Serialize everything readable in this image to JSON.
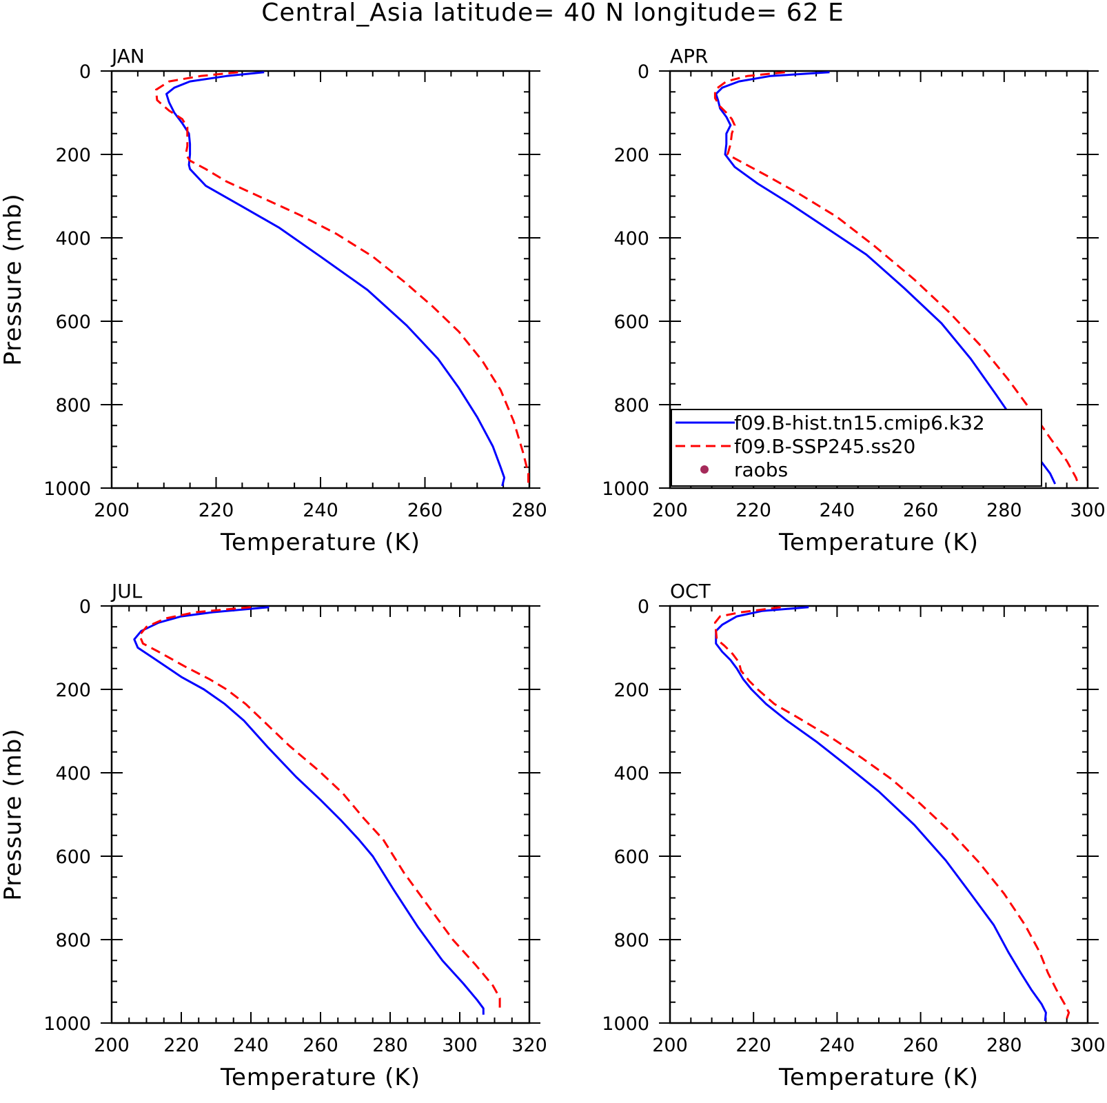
{
  "figure": {
    "title": "Central_Asia  latitude= 40 N longitude= 62 E"
  },
  "chart_data": [
    {
      "type": "line",
      "panel_label": "JAN",
      "xlabel": "Temperature (K)",
      "ylabel": "Pressure (mb)",
      "xlim": [
        200,
        280
      ],
      "xticks": [
        200,
        220,
        240,
        260,
        280
      ],
      "ylim": [
        0,
        1000
      ],
      "yticks": [
        0,
        200,
        400,
        600,
        800,
        1000
      ],
      "y_inverted": true,
      "grid": false,
      "legend": null,
      "series": [
        {
          "name": "f09.B-hist.tn15.cmip6.k32",
          "color": "#0000ff",
          "dash": "solid",
          "points": [
            [
              229.2,
              3
            ],
            [
              222,
              12
            ],
            [
              215,
              25
            ],
            [
              212,
              40
            ],
            [
              210.5,
              55
            ],
            [
              211,
              75
            ],
            [
              212,
              100
            ],
            [
              213.5,
              125
            ],
            [
              214.8,
              150
            ],
            [
              215,
              175
            ],
            [
              215,
              200
            ],
            [
              214.8,
              225
            ],
            [
              215,
              235
            ],
            [
              218,
              275
            ],
            [
              225,
              325
            ],
            [
              232,
              375
            ],
            [
              240,
              445
            ],
            [
              249,
              525
            ],
            [
              256.5,
              610
            ],
            [
              262.5,
              690
            ],
            [
              266.5,
              760
            ],
            [
              270,
              830
            ],
            [
              273,
              900
            ],
            [
              274.5,
              950
            ],
            [
              275.2,
              975
            ],
            [
              274.8,
              995
            ]
          ]
        },
        {
          "name": "f09.B-SSP245.ss20",
          "color": "#ff0000",
          "dash": "dashed",
          "points": [
            [
              224.2,
              3
            ],
            [
              217,
              12
            ],
            [
              211,
              25
            ],
            [
              208.5,
              45
            ],
            [
              208.7,
              70
            ],
            [
              211,
              95
            ],
            [
              213.5,
              115
            ],
            [
              214.5,
              135
            ],
            [
              214.5,
              155
            ],
            [
              214.5,
              180
            ],
            [
              214.2,
              200
            ],
            [
              215,
              215
            ],
            [
              218,
              235
            ],
            [
              222,
              265
            ],
            [
              229,
              305
            ],
            [
              236,
              345
            ],
            [
              243,
              390
            ],
            [
              250,
              445
            ],
            [
              256,
              505
            ],
            [
              261.5,
              565
            ],
            [
              266.5,
              625
            ],
            [
              271,
              695
            ],
            [
              274.5,
              765
            ],
            [
              277,
              840
            ],
            [
              278.8,
              915
            ],
            [
              279.8,
              965
            ],
            [
              279.8,
              990
            ]
          ]
        }
      ]
    },
    {
      "type": "line",
      "panel_label": "APR",
      "xlabel": "Temperature (K)",
      "ylabel": "",
      "xlim": [
        200,
        300
      ],
      "xticks": [
        200,
        220,
        240,
        260,
        280,
        300
      ],
      "ylim": [
        0,
        1000
      ],
      "yticks": [
        0,
        200,
        400,
        600,
        800,
        1000
      ],
      "y_inverted": true,
      "grid": false,
      "legend": {
        "placement": "bottom-left",
        "entries": [
          {
            "label": "f09.B-hist.tn15.cmip6.k32",
            "style": "line",
            "color": "#0000ff",
            "dash": "solid"
          },
          {
            "label": "f09.B-SSP245.ss20",
            "style": "line",
            "color": "#ff0000",
            "dash": "dashed"
          },
          {
            "label": "raobs",
            "style": "marker",
            "color": "#a52a5a"
          }
        ]
      },
      "series": [
        {
          "name": "f09.B-hist.tn15.cmip6.k32",
          "color": "#0000ff",
          "dash": "solid",
          "points": [
            [
              238.2,
              3
            ],
            [
              224,
              12
            ],
            [
              216.5,
              25
            ],
            [
              212.5,
              40
            ],
            [
              211,
              55
            ],
            [
              211.5,
              70
            ],
            [
              212,
              90
            ],
            [
              213.5,
              110
            ],
            [
              214.5,
              130
            ],
            [
              213.5,
              150
            ],
            [
              213.5,
              175
            ],
            [
              213.2,
              200
            ],
            [
              215.5,
              230
            ],
            [
              221,
              270
            ],
            [
              229,
              320
            ],
            [
              238,
              380
            ],
            [
              247,
              440
            ],
            [
              256,
              520
            ],
            [
              265,
              605
            ],
            [
              272,
              690
            ],
            [
              278,
              775
            ],
            [
              283.5,
              855
            ],
            [
              288,
              925
            ],
            [
              291,
              965
            ],
            [
              292.2,
              990
            ]
          ]
        },
        {
          "name": "f09.B-SSP245.ss20",
          "color": "#ff0000",
          "dash": "dashed",
          "points": [
            [
              227.5,
              3
            ],
            [
              218.5,
              12
            ],
            [
              213.5,
              25
            ],
            [
              210.8,
              45
            ],
            [
              210.8,
              65
            ],
            [
              212,
              85
            ],
            [
              213.5,
              100
            ],
            [
              214.8,
              115
            ],
            [
              215.5,
              130
            ],
            [
              214.8,
              150
            ],
            [
              214.5,
              175
            ],
            [
              213.8,
              200
            ],
            [
              216.5,
              215
            ],
            [
              223,
              250
            ],
            [
              231,
              295
            ],
            [
              240,
              350
            ],
            [
              249,
              420
            ],
            [
              258.5,
              500
            ],
            [
              267,
              580
            ],
            [
              274.5,
              660
            ],
            [
              281,
              740
            ],
            [
              286.5,
              815
            ],
            [
              291,
              880
            ],
            [
              295,
              935
            ],
            [
              297.2,
              975
            ],
            [
              297.7,
              990
            ]
          ]
        }
      ]
    },
    {
      "type": "line",
      "panel_label": "JUL",
      "xlabel": "Temperature (K)",
      "ylabel": "Pressure (mb)",
      "xlim": [
        200,
        320
      ],
      "xticks": [
        200,
        220,
        240,
        260,
        280,
        300,
        320
      ],
      "ylim": [
        0,
        1000
      ],
      "yticks": [
        0,
        200,
        400,
        600,
        800,
        1000
      ],
      "y_inverted": true,
      "grid": false,
      "legend": null,
      "series": [
        {
          "name": "f09.B-hist.tn15.cmip6.k32",
          "color": "#0000ff",
          "dash": "solid",
          "points": [
            [
              245.2,
              3
            ],
            [
              229,
              15
            ],
            [
              220,
              25
            ],
            [
              213.5,
              40
            ],
            [
              208.5,
              60
            ],
            [
              206.5,
              80
            ],
            [
              207.5,
              100
            ],
            [
              212,
              125
            ],
            [
              220,
              170
            ],
            [
              226.5,
              200
            ],
            [
              232.5,
              235
            ],
            [
              238,
              275
            ],
            [
              245,
              340
            ],
            [
              253,
              410
            ],
            [
              260,
              465
            ],
            [
              266,
              515
            ],
            [
              271,
              560
            ],
            [
              275,
              600
            ],
            [
              281,
              680
            ],
            [
              288,
              770
            ],
            [
              295,
              850
            ],
            [
              301,
              905
            ],
            [
              305,
              945
            ],
            [
              306.8,
              965
            ],
            [
              306.8,
              980
            ]
          ]
        },
        {
          "name": "f09.B-SSP245.ss20",
          "color": "#ff0000",
          "dash": "dashed",
          "points": [
            [
              240,
              3
            ],
            [
              224,
              15
            ],
            [
              215.5,
              30
            ],
            [
              210,
              50
            ],
            [
              208,
              70
            ],
            [
              209,
              90
            ],
            [
              213.5,
              110
            ],
            [
              221,
              145
            ],
            [
              228,
              175
            ],
            [
              233,
              200
            ],
            [
              238.5,
              235
            ],
            [
              243.5,
              275
            ],
            [
              251,
              335
            ],
            [
              259.5,
              395
            ],
            [
              266.5,
              450
            ],
            [
              272.5,
              510
            ],
            [
              278,
              560
            ],
            [
              284,
              640
            ],
            [
              291,
              720
            ],
            [
              298,
              800
            ],
            [
              304.5,
              860
            ],
            [
              309.5,
              910
            ],
            [
              311.5,
              940
            ],
            [
              311.5,
              965
            ]
          ]
        }
      ]
    },
    {
      "type": "line",
      "panel_label": "OCT",
      "xlabel": "Temperature (K)",
      "ylabel": "",
      "xlim": [
        200,
        300
      ],
      "xticks": [
        200,
        220,
        240,
        260,
        280,
        300
      ],
      "ylim": [
        0,
        1000
      ],
      "yticks": [
        0,
        200,
        400,
        600,
        800,
        1000
      ],
      "y_inverted": true,
      "grid": false,
      "legend": null,
      "series": [
        {
          "name": "f09.B-hist.tn15.cmip6.k32",
          "color": "#0000ff",
          "dash": "solid",
          "points": [
            [
              233.2,
              3
            ],
            [
              222,
              12
            ],
            [
              216,
              25
            ],
            [
              212.5,
              45
            ],
            [
              211,
              60
            ],
            [
              211,
              90
            ],
            [
              212.5,
              110
            ],
            [
              214.5,
              130
            ],
            [
              216,
              150
            ],
            [
              217.5,
              175
            ],
            [
              219.5,
              200
            ],
            [
              223,
              235
            ],
            [
              228,
              275
            ],
            [
              235,
              325
            ],
            [
              242,
              380
            ],
            [
              250,
              445
            ],
            [
              258.5,
              525
            ],
            [
              266,
              610
            ],
            [
              272,
              690
            ],
            [
              277.5,
              765
            ],
            [
              281,
              830
            ],
            [
              284,
              880
            ],
            [
              286.5,
              920
            ],
            [
              289,
              955
            ],
            [
              290,
              975
            ],
            [
              289.8,
              995
            ]
          ]
        },
        {
          "name": "f09.B-SSP245.ss20",
          "color": "#ff0000",
          "dash": "dashed",
          "points": [
            [
              226.5,
              3
            ],
            [
              217,
              15
            ],
            [
              212,
              25
            ],
            [
              210.8,
              40
            ],
            [
              211,
              60
            ],
            [
              211.2,
              80
            ],
            [
              213,
              95
            ],
            [
              215,
              115
            ],
            [
              216.5,
              135
            ],
            [
              217,
              155
            ],
            [
              219,
              180
            ],
            [
              221,
              200
            ],
            [
              225,
              235
            ],
            [
              231,
              270
            ],
            [
              238.5,
              315
            ],
            [
              246,
              365
            ],
            [
              253,
              415
            ],
            [
              260,
              475
            ],
            [
              267.5,
              545
            ],
            [
              274,
              615
            ],
            [
              280,
              690
            ],
            [
              285,
              765
            ],
            [
              288.5,
              830
            ],
            [
              290.5,
              880
            ],
            [
              292.5,
              920
            ],
            [
              294.5,
              955
            ],
            [
              295.5,
              975
            ],
            [
              294.8,
              995
            ]
          ]
        }
      ]
    }
  ]
}
